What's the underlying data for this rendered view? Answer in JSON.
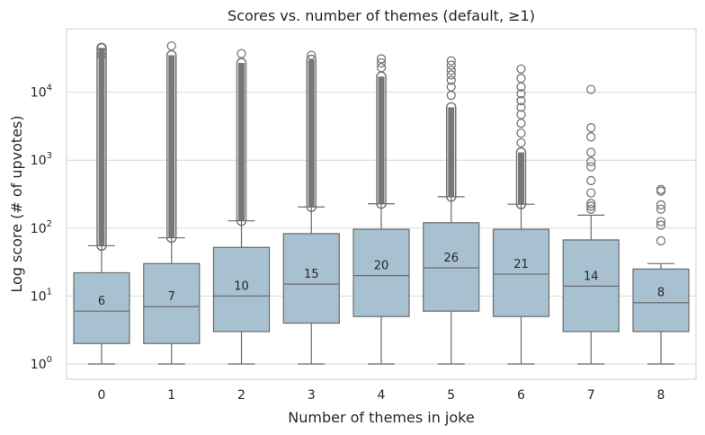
{
  "chart_data": {
    "type": "box",
    "title": "Scores vs. number of themes (default, ≥1)",
    "xlabel": "Number of themes in joke",
    "ylabel": "Log score (# of upvotes)",
    "yscale": "log",
    "ylim": [
      0.6,
      80000
    ],
    "y_ticks": [
      1,
      10,
      100,
      1000,
      10000
    ],
    "y_tick_labels": [
      {
        "base": "10",
        "exp": "0"
      },
      {
        "base": "10",
        "exp": "1"
      },
      {
        "base": "10",
        "exp": "2"
      },
      {
        "base": "10",
        "exp": "3"
      },
      {
        "base": "10",
        "exp": "4"
      }
    ],
    "grid": "horizontal",
    "box_color": "#a8c1d1",
    "line_color": "#6b6b6b",
    "flier_color": "#777777",
    "categories": [
      "0",
      "1",
      "2",
      "3",
      "4",
      "5",
      "6",
      "7",
      "8"
    ],
    "boxes": [
      {
        "min": 1,
        "q1": 2,
        "median": 6,
        "q3": 22,
        "whisker_high": 55,
        "outliers_low": 55,
        "outliers_high": 45000,
        "dense_outliers": true,
        "outliers": [
          35000,
          45000
        ],
        "median_label": "6"
      },
      {
        "min": 1,
        "q1": 2,
        "median": 7,
        "q3": 30,
        "whisker_high": 72,
        "outliers_low": 72,
        "outliers_high": 35000,
        "dense_outliers": true,
        "outliers": [
          48000
        ],
        "median_label": "7"
      },
      {
        "min": 1,
        "q1": 3,
        "median": 10,
        "q3": 52,
        "whisker_high": 128,
        "outliers_low": 128,
        "outliers_high": 27000,
        "dense_outliers": true,
        "outliers": [
          37000
        ],
        "median_label": "10"
      },
      {
        "min": 1,
        "q1": 4,
        "median": 15,
        "q3": 83,
        "whisker_high": 205,
        "outliers_low": 205,
        "outliers_high": 30000,
        "dense_outliers": true,
        "outliers": [
          35000
        ],
        "median_label": "15"
      },
      {
        "min": 1,
        "q1": 5,
        "median": 20,
        "q3": 96,
        "whisker_high": 228,
        "outliers_low": 228,
        "outliers_high": 17000,
        "dense_outliers": true,
        "outliers": [
          23000,
          27000,
          31000
        ],
        "median_label": "20"
      },
      {
        "min": 1,
        "q1": 6,
        "median": 26,
        "q3": 120,
        "whisker_high": 290,
        "outliers_low": 290,
        "outliers_high": 6000,
        "dense_outliers": true,
        "outliers": [
          9000,
          12000,
          15000,
          18000,
          21000,
          25000,
          29000
        ],
        "median_label": "26"
      },
      {
        "min": 1,
        "q1": 5,
        "median": 21,
        "q3": 96,
        "whisker_high": 225,
        "outliers_low": 225,
        "outliers_high": 1300,
        "dense_outliers": true,
        "outliers": [
          1800,
          2500,
          3500,
          4700,
          6000,
          7500,
          9500,
          12000,
          16000,
          22000
        ],
        "median_label": "21"
      },
      {
        "min": 1,
        "q1": 3,
        "median": 14,
        "q3": 67,
        "whisker_high": 155,
        "outliers_low": 185,
        "outliers_high": 185,
        "dense_outliers": false,
        "outliers": [
          190,
          210,
          230,
          330,
          500,
          800,
          950,
          1300,
          2200,
          3000,
          11000
        ],
        "median_label": "14"
      },
      {
        "min": 1,
        "q1": 3,
        "median": 8,
        "q3": 25,
        "whisker_high": 30,
        "outliers_low": 65,
        "outliers_high": 65,
        "dense_outliers": false,
        "outliers": [
          65,
          110,
          125,
          190,
          220,
          350,
          370
        ],
        "median_label": "8"
      }
    ]
  }
}
